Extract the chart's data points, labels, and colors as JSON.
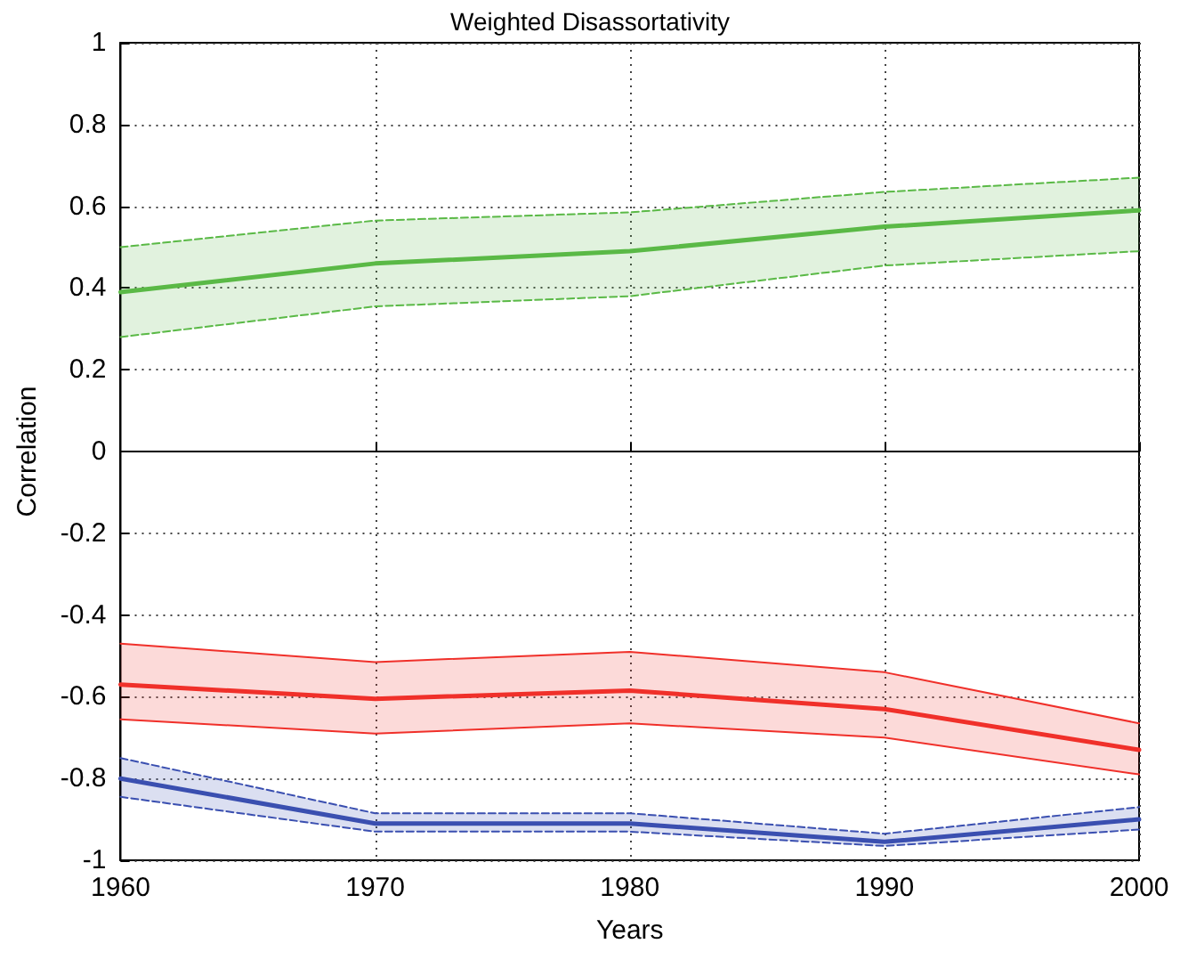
{
  "chart_data": {
    "type": "line",
    "title": "Weighted Disassortativity",
    "xlabel": "Years",
    "ylabel": "Correlation",
    "x": [
      1960,
      1970,
      1980,
      1990,
      2000
    ],
    "xlim": [
      1960,
      2000
    ],
    "xticks": [
      1960,
      1970,
      1980,
      1990,
      2000
    ],
    "ylim": [
      -1,
      1
    ],
    "yticks": [
      -1,
      -0.8,
      -0.6,
      -0.4,
      -0.2,
      0,
      0.2,
      0.4,
      0.6,
      0.8,
      1
    ],
    "grid": true,
    "marker": "none",
    "line_style": "solid",
    "series": [
      {
        "color": "#5ab946",
        "values": [
          0.39,
          0.46,
          0.49,
          0.55,
          0.59
        ],
        "lower": [
          0.28,
          0.355,
          0.38,
          0.455,
          0.49
        ],
        "upper": [
          0.5,
          0.565,
          0.585,
          0.635,
          0.67
        ]
      },
      {
        "color": "#5ab946",
        "line_style": "dashed",
        "values": [
          0.5,
          0.565,
          0.585,
          0.635,
          0.67
        ]
      },
      {
        "color": "#5ab946",
        "line_style": "dashed",
        "values": [
          0.28,
          0.355,
          0.38,
          0.455,
          0.49
        ]
      },
      {
        "color": "#f0302a",
        "values": [
          -0.57,
          -0.605,
          -0.585,
          -0.63,
          -0.73
        ],
        "lower": [
          -0.655,
          -0.69,
          -0.665,
          -0.7,
          -0.79
        ],
        "upper": [
          -0.47,
          -0.515,
          -0.49,
          -0.54,
          -0.665
        ]
      },
      {
        "color": "#f0302a",
        "values": [
          -0.47,
          -0.515,
          -0.49,
          -0.54,
          -0.665
        ]
      },
      {
        "color": "#f0302a",
        "values": [
          -0.655,
          -0.69,
          -0.665,
          -0.7,
          -0.79
        ]
      },
      {
        "color": "#3a4fb0",
        "values": [
          -0.8,
          -0.91,
          -0.91,
          -0.955,
          -0.9
        ],
        "lower": [
          -0.845,
          -0.93,
          -0.93,
          -0.965,
          -0.925
        ],
        "upper": [
          -0.75,
          -0.885,
          -0.885,
          -0.935,
          -0.87
        ]
      },
      {
        "color": "#3a4fb0",
        "line_style": "dashed",
        "values": [
          -0.75,
          -0.885,
          -0.885,
          -0.935,
          -0.87
        ]
      },
      {
        "color": "#3a4fb0",
        "line_style": "dashed",
        "values": [
          -0.845,
          -0.93,
          -0.93,
          -0.965,
          -0.925
        ]
      }
    ]
  }
}
